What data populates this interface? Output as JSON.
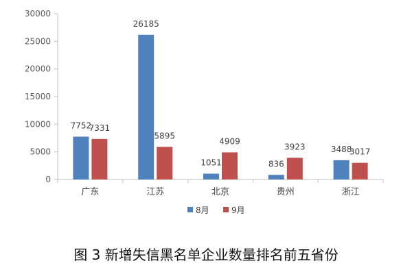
{
  "chart_data": {
    "type": "bar",
    "categories": [
      "广东",
      "江苏",
      "北京",
      "贵州",
      "浙江"
    ],
    "series": [
      {
        "name": "8月",
        "values": [
          7752,
          26185,
          1051,
          836,
          3488
        ],
        "color": "#4F81BD"
      },
      {
        "name": "9月",
        "values": [
          7331,
          5895,
          4909,
          3923,
          3017
        ],
        "color": "#C0504D"
      }
    ],
    "ylim": [
      0,
      30000
    ],
    "yticks": [
      0,
      5000,
      10000,
      15000,
      20000,
      25000,
      30000
    ],
    "grid": false,
    "legend": "bottom",
    "data_labels": true
  },
  "caption": "图 3  新增失信黑名单企业数量排名前五省份"
}
